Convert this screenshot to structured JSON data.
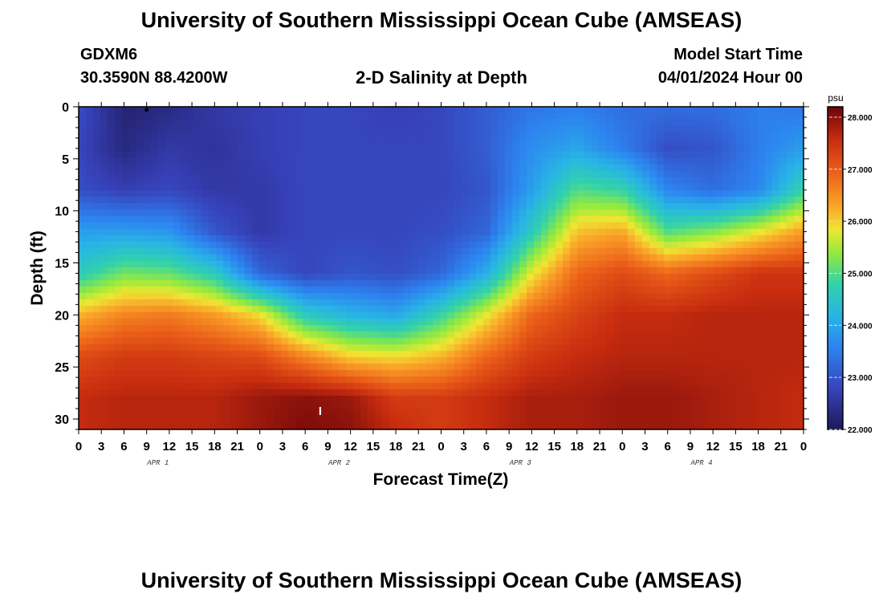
{
  "header": {
    "title": "University of Southern Mississippi Ocean Cube (AMSEAS)",
    "station": "GDXM6",
    "coords": "30.3590N  88.4200W",
    "plot_title": "2-D Salinity at Depth",
    "start_label": "Model Start Time",
    "start_value": "04/01/2024 Hour 00"
  },
  "footer_title": "University of Southern Mississippi Ocean Cube (AMSEAS)",
  "chart_data": {
    "type": "heatmap",
    "title": "2-D Salinity at Depth",
    "xlabel": "Forecast Time(Z)",
    "ylabel": "Depth (ft)",
    "x_tick_labels": [
      "0",
      "3",
      "6",
      "9",
      "12",
      "15",
      "18",
      "21",
      "0",
      "3",
      "6",
      "9",
      "12",
      "15",
      "18",
      "21",
      "0",
      "3",
      "6",
      "9",
      "12",
      "15",
      "18",
      "21",
      "0",
      "3",
      "6",
      "9",
      "12",
      "15",
      "18",
      "21",
      "0"
    ],
    "day_labels": [
      "APR 1",
      "APR 2",
      "APR 3",
      "APR 4"
    ],
    "xlim_hours": [
      0,
      96
    ],
    "y_ticks": [
      0,
      5,
      10,
      15,
      20,
      25,
      30
    ],
    "ylim_ft": [
      0,
      31
    ],
    "colorbar": {
      "unit": "psu",
      "ticks": [
        "22.000",
        "23.000",
        "24.000",
        "25.000",
        "26.000",
        "27.000",
        "28.000"
      ],
      "range": [
        22.0,
        28.2
      ]
    },
    "time_hours": [
      0,
      6,
      12,
      18,
      24,
      30,
      36,
      42,
      48,
      54,
      60,
      66,
      72,
      78,
      84,
      90,
      96
    ],
    "depth_ft": [
      0,
      4,
      8,
      12,
      16,
      20,
      24,
      28,
      31
    ],
    "salinity_psu": [
      [
        22.9,
        22.2,
        22.3,
        22.6,
        22.7,
        22.8,
        22.8,
        22.7,
        22.8,
        23.1,
        23.4,
        23.5,
        23.3,
        23.3,
        23.3,
        23.5,
        23.4
      ],
      [
        22.8,
        22.3,
        22.6,
        22.5,
        22.7,
        22.8,
        22.8,
        22.8,
        22.8,
        23.1,
        23.7,
        24.0,
        23.5,
        22.9,
        23.0,
        23.5,
        23.9
      ],
      [
        22.9,
        22.7,
        22.8,
        22.6,
        22.6,
        22.8,
        22.8,
        22.8,
        22.8,
        23.0,
        23.9,
        25.0,
        24.8,
        23.6,
        23.3,
        23.6,
        24.8
      ],
      [
        23.9,
        23.9,
        23.8,
        23.0,
        22.6,
        22.8,
        22.8,
        22.8,
        22.9,
        23.2,
        24.6,
        26.1,
        26.3,
        25.0,
        25.3,
        25.8,
        26.4
      ],
      [
        24.6,
        25.2,
        25.1,
        24.6,
        23.2,
        22.8,
        23.0,
        22.9,
        23.2,
        24.1,
        25.8,
        26.9,
        27.2,
        26.9,
        27.2,
        27.5,
        27.5
      ],
      [
        26.2,
        26.6,
        26.7,
        26.4,
        25.9,
        24.6,
        24.2,
        24.0,
        24.8,
        25.8,
        26.9,
        27.3,
        27.6,
        27.6,
        27.7,
        27.7,
        27.7
      ],
      [
        27.2,
        27.4,
        27.4,
        27.3,
        27.2,
        26.6,
        26.0,
        25.9,
        26.2,
        26.9,
        27.4,
        27.6,
        27.7,
        27.7,
        27.7,
        27.7,
        27.7
      ],
      [
        27.6,
        27.7,
        27.7,
        27.7,
        27.9,
        28.0,
        27.9,
        27.4,
        27.4,
        27.6,
        27.8,
        27.8,
        27.9,
        27.9,
        27.8,
        27.7,
        27.6
      ],
      [
        27.6,
        27.7,
        27.7,
        27.7,
        27.9,
        28.1,
        28.0,
        27.6,
        27.4,
        27.6,
        27.8,
        27.8,
        27.9,
        27.9,
        27.8,
        27.7,
        27.6
      ]
    ],
    "marker_label": "I"
  }
}
